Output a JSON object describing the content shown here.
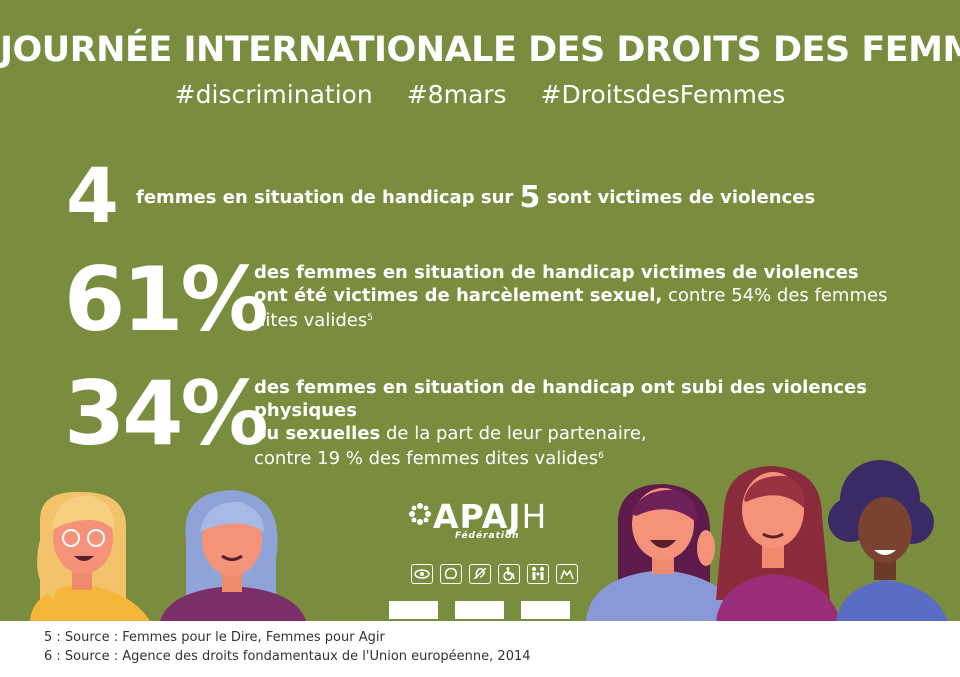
{
  "title": "JOURNÉE INTERNATIONALE DES DROITS DES FEMMES",
  "hashtags": [
    "#discrimination",
    "#8mars",
    "#DroitsdesFemmes"
  ],
  "stats": {
    "s1": {
      "big": "4",
      "t1": "femmes en situation de handicap sur",
      "five": "5",
      "t2": "sont victimes de violences"
    },
    "s2": {
      "big": "61%",
      "b1": "des femmes en situation de handicap victimes de violences",
      "b2": "ont été victimes de harcèlement sexuel,",
      "r1": " contre 54% des femmes",
      "r2": "dites valides",
      "sup": "5"
    },
    "s3": {
      "big": "34%",
      "b1": "des femmes en situation de handicap ont subi des violences physiques",
      "b2": "ou sexuelles",
      "r1": " de la part de leur partenaire,",
      "r2": "contre 19 % des femmes dites valides",
      "sup": "6"
    }
  },
  "logo": {
    "name": "APAJ",
    "last": "H",
    "sub": "Fédération"
  },
  "accessibility_icons": [
    "eye-icon",
    "brain-icon",
    "ear-icon",
    "wheelchair-icon",
    "family-icon",
    "hands-icon"
  ],
  "colors": {
    "background": "#7a8d3f",
    "text": "#ffffff"
  },
  "footer": {
    "note5": "5 : Source : Femmes pour le Dire, Femmes pour Agir",
    "note6": "6 : Source : Agence des droits fondamentaux de l'Union européenne, 2014"
  }
}
